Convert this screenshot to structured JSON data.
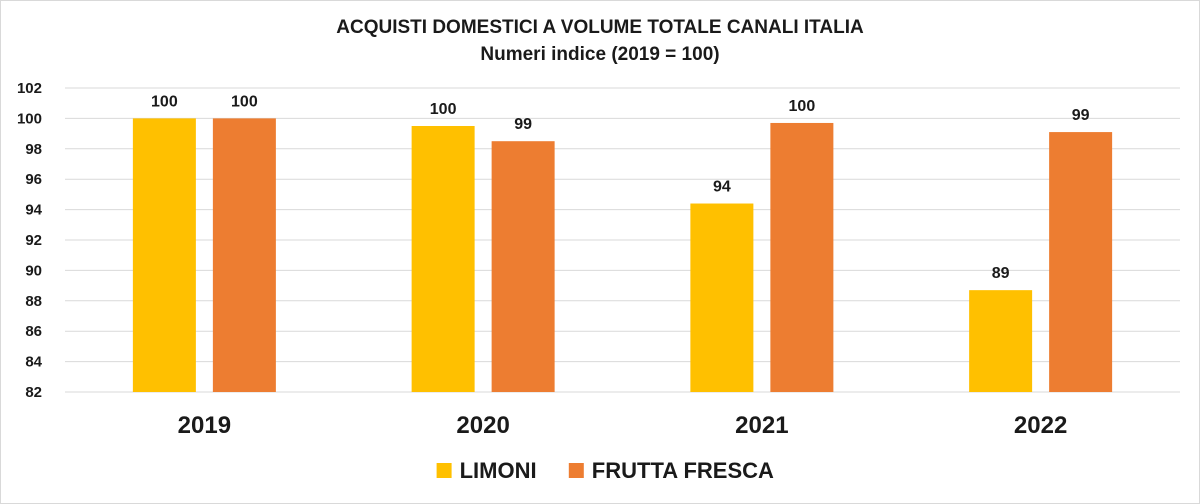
{
  "chart_data": {
    "type": "bar",
    "title": "ACQUISTI DOMESTICI A VOLUME TOTALE CANALI ITALIA",
    "subtitle": "Numeri indice (2019 = 100)",
    "categories": [
      "2019",
      "2020",
      "2021",
      "2022"
    ],
    "series": [
      {
        "name": "LIMONI",
        "color": "#FFC000",
        "values": [
          100,
          99.5,
          94.4,
          88.7
        ],
        "labels": [
          "100",
          "100",
          "94",
          "89"
        ]
      },
      {
        "name": "FRUTTA FRESCA",
        "color": "#ED7D31",
        "values": [
          100,
          98.5,
          99.7,
          99.1
        ],
        "labels": [
          "100",
          "99",
          "100",
          "99"
        ]
      }
    ],
    "ylim": [
      82,
      102
    ],
    "yticks": [
      82,
      84,
      86,
      88,
      90,
      92,
      94,
      96,
      98,
      100,
      102
    ],
    "grid": true,
    "legend": "bottom"
  }
}
